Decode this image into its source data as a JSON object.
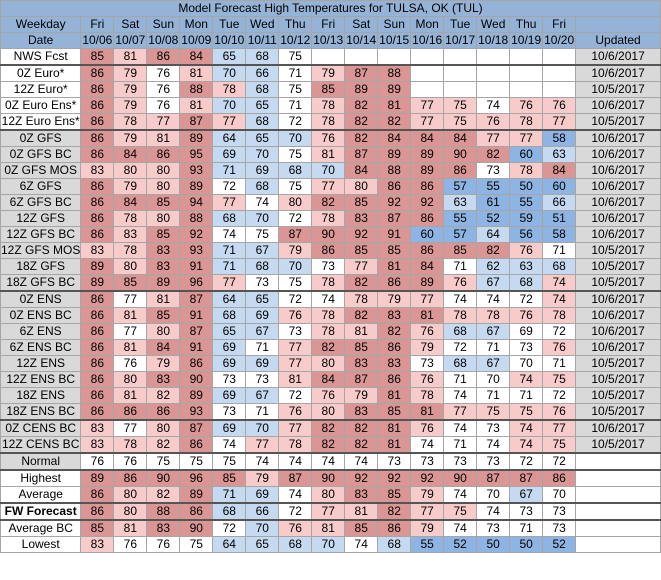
{
  "title": "Model Forecast High Temperatures for TULSA, OK (TUL)",
  "header": {
    "weekday_label": "Weekday",
    "date_label": "Date",
    "updated_label": "Updated",
    "weekdays": [
      "Fri",
      "Sat",
      "Sun",
      "Mon",
      "Tue",
      "Wed",
      "Thu",
      "Fri",
      "Sat",
      "Sun",
      "Mon",
      "Tue",
      "Wed",
      "Thu",
      "Fri"
    ],
    "dates": [
      "10/06",
      "10/07",
      "10/08",
      "10/09",
      "10/10",
      "10/11",
      "10/12",
      "10/13",
      "10/14",
      "10/15",
      "10/16",
      "10/17",
      "10/18",
      "10/19",
      "10/20"
    ]
  },
  "colors": {
    "header": "#95b3d7",
    "dark_red": "#da9694",
    "light_red": "#f8cbcb",
    "blue": "#8db4e2",
    "light_blue": "#c5d9f1",
    "gray": "#d9d9d9",
    "white": "#ffffff"
  },
  "rows": [
    {
      "label": "NWS Fcst",
      "values": [
        "85",
        "81",
        "86",
        "84",
        "65",
        "68",
        "75",
        "",
        "",
        "",
        "",
        "",
        "",
        "",
        ""
      ],
      "updated": "10/6/2017",
      "sep": false,
      "style": "",
      "lblbg": "w"
    },
    {
      "label": "0Z Euro*",
      "values": [
        "86",
        "79",
        "76",
        "81",
        "70",
        "66",
        "71",
        "79",
        "87",
        "88",
        "",
        "",
        "",
        "",
        ""
      ],
      "updated": "10/6/2017",
      "sep": true,
      "style": "",
      "lblbg": "w"
    },
    {
      "label": "12Z Euro*",
      "values": [
        "86",
        "79",
        "76",
        "88",
        "78",
        "68",
        "75",
        "85",
        "89",
        "89",
        "",
        "",
        "",
        "",
        ""
      ],
      "updated": "10/5/2017",
      "sep": false,
      "style": "",
      "lblbg": "w"
    },
    {
      "label": "0Z Euro Ens*",
      "values": [
        "86",
        "79",
        "76",
        "81",
        "70",
        "65",
        "71",
        "78",
        "82",
        "81",
        "77",
        "75",
        "74",
        "76",
        "76"
      ],
      "updated": "10/6/2017",
      "sep": false,
      "style": "",
      "lblbg": "w"
    },
    {
      "label": "12Z Euro Ens*",
      "values": [
        "86",
        "78",
        "77",
        "87",
        "77",
        "68",
        "72",
        "78",
        "82",
        "82",
        "77",
        "75",
        "76",
        "78",
        "77"
      ],
      "updated": "10/5/2017",
      "sep": false,
      "style": "",
      "lblbg": "w"
    },
    {
      "label": "0Z GFS",
      "values": [
        "86",
        "79",
        "81",
        "89",
        "64",
        "65",
        "70",
        "76",
        "82",
        "84",
        "84",
        "84",
        "77",
        "77",
        "58"
      ],
      "updated": "10/6/2017",
      "sep": true,
      "style": "",
      "lblbg": "g"
    },
    {
      "label": "0Z GFS BC",
      "values": [
        "86",
        "84",
        "86",
        "95",
        "69",
        "70",
        "75",
        "81",
        "87",
        "89",
        "89",
        "90",
        "82",
        "60",
        "63"
      ],
      "updated": "10/6/2017",
      "sep": false,
      "style": "",
      "lblbg": "g"
    },
    {
      "label": "0Z GFS MOS",
      "values": [
        "83",
        "80",
        "80",
        "93",
        "71",
        "69",
        "68",
        "70",
        "84",
        "88",
        "89",
        "86",
        "73",
        "78",
        "84"
      ],
      "updated": "10/6/2017",
      "sep": false,
      "style": "",
      "lblbg": "g"
    },
    {
      "label": "6Z GFS",
      "values": [
        "86",
        "79",
        "80",
        "89",
        "72",
        "68",
        "75",
        "77",
        "80",
        "86",
        "86",
        "57",
        "55",
        "50",
        "60"
      ],
      "updated": "10/6/2017",
      "sep": false,
      "style": "",
      "lblbg": "g"
    },
    {
      "label": "6Z GFS BC",
      "values": [
        "86",
        "84",
        "85",
        "94",
        "77",
        "74",
        "80",
        "82",
        "85",
        "92",
        "92",
        "63",
        "61",
        "55",
        "66"
      ],
      "updated": "10/6/2017",
      "sep": false,
      "style": "",
      "lblbg": "g"
    },
    {
      "label": "12Z GFS",
      "values": [
        "86",
        "78",
        "80",
        "88",
        "68",
        "70",
        "72",
        "78",
        "83",
        "87",
        "86",
        "55",
        "52",
        "59",
        "51"
      ],
      "updated": "10/6/2017",
      "sep": false,
      "style": "",
      "lblbg": "g"
    },
    {
      "label": "12Z GFS BC",
      "values": [
        "86",
        "83",
        "85",
        "92",
        "74",
        "75",
        "87",
        "90",
        "92",
        "91",
        "60",
        "57",
        "64",
        "56",
        "58"
      ],
      "updated": "10/6/2017",
      "sep": false,
      "style": "",
      "lblbg": "g"
    },
    {
      "label": "12Z GFS MOS",
      "values": [
        "83",
        "78",
        "83",
        "93",
        "71",
        "67",
        "79",
        "86",
        "85",
        "85",
        "86",
        "85",
        "82",
        "76",
        "71"
      ],
      "updated": "10/5/2017",
      "sep": false,
      "style": "",
      "lblbg": "g"
    },
    {
      "label": "18Z GFS",
      "values": [
        "89",
        "80",
        "83",
        "91",
        "71",
        "68",
        "70",
        "73",
        "77",
        "81",
        "84",
        "71",
        "62",
        "63",
        "68"
      ],
      "updated": "10/5/2017",
      "sep": false,
      "style": "",
      "lblbg": "g"
    },
    {
      "label": "18Z GFS BC",
      "values": [
        "89",
        "85",
        "89",
        "96",
        "77",
        "73",
        "75",
        "78",
        "82",
        "86",
        "89",
        "76",
        "67",
        "68",
        "74"
      ],
      "updated": "10/5/2017",
      "sep": false,
      "style": "",
      "lblbg": "g"
    },
    {
      "label": "0Z ENS",
      "values": [
        "86",
        "77",
        "81",
        "87",
        "64",
        "65",
        "72",
        "74",
        "78",
        "79",
        "77",
        "74",
        "74",
        "72",
        "74"
      ],
      "updated": "10/6/2017",
      "sep": true,
      "style": "",
      "lblbg": "g"
    },
    {
      "label": "0Z ENS BC",
      "values": [
        "86",
        "81",
        "85",
        "91",
        "68",
        "69",
        "76",
        "78",
        "82",
        "83",
        "81",
        "78",
        "78",
        "76",
        "78"
      ],
      "updated": "10/6/2017",
      "sep": false,
      "style": "",
      "lblbg": "g"
    },
    {
      "label": "6Z ENS",
      "values": [
        "86",
        "77",
        "80",
        "87",
        "65",
        "67",
        "73",
        "78",
        "81",
        "82",
        "76",
        "68",
        "67",
        "69",
        "72"
      ],
      "updated": "10/6/2017",
      "sep": false,
      "style": "",
      "lblbg": "g"
    },
    {
      "label": "6Z ENS BC",
      "values": [
        "86",
        "81",
        "84",
        "91",
        "69",
        "71",
        "77",
        "82",
        "85",
        "86",
        "79",
        "72",
        "71",
        "73",
        "76"
      ],
      "updated": "10/6/2017",
      "sep": false,
      "style": "",
      "lblbg": "g"
    },
    {
      "label": "12Z ENS",
      "values": [
        "86",
        "76",
        "79",
        "86",
        "69",
        "69",
        "77",
        "80",
        "83",
        "83",
        "73",
        "68",
        "67",
        "70",
        "71"
      ],
      "updated": "10/5/2017",
      "sep": false,
      "style": "",
      "lblbg": "g"
    },
    {
      "label": "12Z ENS BC",
      "values": [
        "86",
        "80",
        "83",
        "90",
        "73",
        "73",
        "81",
        "84",
        "87",
        "86",
        "76",
        "71",
        "70",
        "74",
        "75"
      ],
      "updated": "10/5/2017",
      "sep": false,
      "style": "",
      "lblbg": "g"
    },
    {
      "label": "18Z ENS",
      "values": [
        "86",
        "81",
        "82",
        "89",
        "69",
        "67",
        "72",
        "76",
        "79",
        "81",
        "78",
        "74",
        "71",
        "71",
        "72"
      ],
      "updated": "10/5/2017",
      "sep": false,
      "style": "",
      "lblbg": "g"
    },
    {
      "label": "18Z ENS BC",
      "values": [
        "86",
        "86",
        "86",
        "93",
        "73",
        "71",
        "76",
        "80",
        "83",
        "85",
        "81",
        "77",
        "75",
        "75",
        "76"
      ],
      "updated": "10/5/2017",
      "sep": false,
      "style": "",
      "lblbg": "g"
    },
    {
      "label": "0Z CENS BC",
      "values": [
        "83",
        "77",
        "80",
        "87",
        "69",
        "70",
        "77",
        "82",
        "82",
        "81",
        "76",
        "74",
        "73",
        "74",
        "77"
      ],
      "updated": "10/6/2017",
      "sep": true,
      "style": "sm",
      "lblbg": "g"
    },
    {
      "label": "12Z CENS BC",
      "values": [
        "83",
        "78",
        "82",
        "86",
        "74",
        "77",
        "78",
        "82",
        "82",
        "81",
        "74",
        "71",
        "74",
        "74",
        "75"
      ],
      "updated": "10/5/2017",
      "sep": false,
      "style": "sm",
      "lblbg": "g"
    },
    {
      "label": "Normal",
      "values": [
        "76",
        "76",
        "75",
        "75",
        "75",
        "74",
        "74",
        "74",
        "74",
        "73",
        "73",
        "73",
        "73",
        "72",
        "72"
      ],
      "updated": "",
      "sep": true,
      "style": "",
      "lblbg": "g"
    },
    {
      "label": "Highest",
      "values": [
        "89",
        "86",
        "90",
        "96",
        "85",
        "79",
        "87",
        "90",
        "92",
        "92",
        "92",
        "90",
        "87",
        "87",
        "86"
      ],
      "updated": "",
      "sep": true,
      "style": "",
      "lblbg": "w"
    },
    {
      "label": "Average",
      "values": [
        "86",
        "80",
        "82",
        "89",
        "71",
        "69",
        "74",
        "80",
        "83",
        "85",
        "79",
        "74",
        "70",
        "67",
        "70"
      ],
      "updated": "",
      "sep": false,
      "style": "",
      "lblbg": "w"
    },
    {
      "label": "FW Forecast",
      "values": [
        "86",
        "80",
        "88",
        "86",
        "68",
        "66",
        "72",
        "77",
        "81",
        "82",
        "77",
        "75",
        "74",
        "73",
        "73"
      ],
      "updated": "",
      "sep": true,
      "style": "bold",
      "lblbg": "w"
    },
    {
      "label": "Average BC",
      "values": [
        "85",
        "81",
        "83",
        "90",
        "72",
        "70",
        "76",
        "81",
        "85",
        "86",
        "79",
        "74",
        "73",
        "71",
        "73"
      ],
      "updated": "",
      "sep": true,
      "style": "",
      "lblbg": "w"
    },
    {
      "label": "Lowest",
      "values": [
        "83",
        "76",
        "76",
        "75",
        "64",
        "65",
        "68",
        "70",
        "74",
        "68",
        "55",
        "52",
        "50",
        "50",
        "52"
      ],
      "updated": "",
      "sep": false,
      "style": "",
      "lblbg": "w"
    }
  ]
}
